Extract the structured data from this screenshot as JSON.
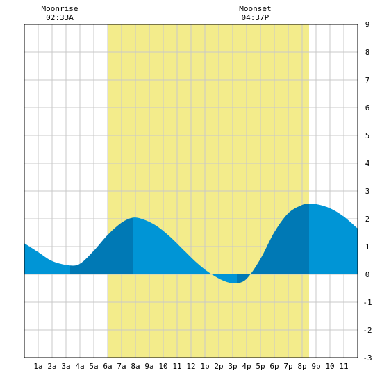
{
  "moon": {
    "rise_label": "Moonrise",
    "rise_time": "02:33A",
    "set_label": "Moonset",
    "set_time": "04:37P"
  },
  "chart_data": {
    "type": "area",
    "title": "",
    "xlabel": "",
    "ylabel": "",
    "x_range": [
      0,
      24
    ],
    "ylim": [
      -3,
      9
    ],
    "grid": true,
    "x_tick_labels": [
      {
        "hour": 1,
        "label": "1a"
      },
      {
        "hour": 2,
        "label": "2a"
      },
      {
        "hour": 3,
        "label": "3a"
      },
      {
        "hour": 4,
        "label": "4a"
      },
      {
        "hour": 5,
        "label": "5a"
      },
      {
        "hour": 6,
        "label": "6a"
      },
      {
        "hour": 7,
        "label": "7a"
      },
      {
        "hour": 8,
        "label": "8a"
      },
      {
        "hour": 9,
        "label": "9a"
      },
      {
        "hour": 10,
        "label": "10"
      },
      {
        "hour": 11,
        "label": "11"
      },
      {
        "hour": 12,
        "label": "12"
      },
      {
        "hour": 13,
        "label": "1p"
      },
      {
        "hour": 14,
        "label": "2p"
      },
      {
        "hour": 15,
        "label": "3p"
      },
      {
        "hour": 16,
        "label": "4p"
      },
      {
        "hour": 17,
        "label": "5p"
      },
      {
        "hour": 18,
        "label": "6p"
      },
      {
        "hour": 19,
        "label": "7p"
      },
      {
        "hour": 20,
        "label": "8p"
      },
      {
        "hour": 21,
        "label": "9p"
      },
      {
        "hour": 22,
        "label": "10"
      },
      {
        "hour": 23,
        "label": "11"
      }
    ],
    "y_ticks": [
      -3,
      -2,
      -1,
      0,
      1,
      2,
      3,
      4,
      5,
      6,
      7,
      8,
      9
    ],
    "daylight": {
      "start_hour": 6.0,
      "end_hour": 20.5
    },
    "moonrise_hour": 2.55,
    "moonset_hour": 16.62,
    "tide": {
      "x": [
        0,
        1,
        2,
        3.3,
        4,
        5,
        6,
        7,
        7.8,
        8.5,
        9.5,
        10.5,
        11.5,
        12.5,
        13.5,
        14.5,
        15.3,
        16,
        17,
        18,
        19,
        20,
        20.5,
        21,
        22,
        23,
        24
      ],
      "y": [
        1.12,
        0.8,
        0.48,
        0.32,
        0.38,
        0.85,
        1.42,
        1.86,
        2.04,
        1.99,
        1.75,
        1.35,
        0.86,
        0.38,
        0.0,
        -0.26,
        -0.32,
        -0.16,
        0.56,
        1.52,
        2.2,
        2.5,
        2.54,
        2.53,
        2.38,
        2.08,
        1.65
      ]
    },
    "bands": [
      {
        "start": 0,
        "end": 3.3,
        "phase": "falling"
      },
      {
        "start": 3.3,
        "end": 7.8,
        "phase": "rising"
      },
      {
        "start": 7.8,
        "end": 15.3,
        "phase": "falling"
      },
      {
        "start": 15.3,
        "end": 20.5,
        "phase": "rising"
      },
      {
        "start": 20.5,
        "end": 24,
        "phase": "falling"
      }
    ],
    "colors": {
      "daylight": "#f3ec8b",
      "falling": "#0095d6",
      "rising": "#0079b5",
      "grid": "#c8c8c8",
      "border": "#000000"
    }
  }
}
